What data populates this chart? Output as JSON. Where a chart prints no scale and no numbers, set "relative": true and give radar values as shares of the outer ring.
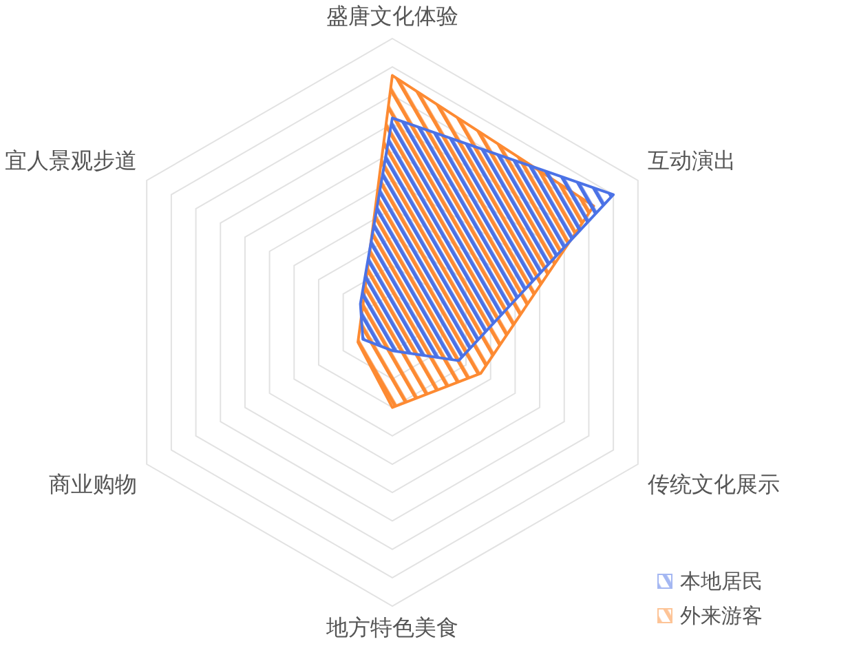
{
  "chart_data": {
    "type": "radar",
    "relative": true,
    "grid": true,
    "legend": "bottom right",
    "categories": [
      "盛唐文化体验",
      "互动演出",
      "传统文化展示",
      "地方特色美食",
      "商业购物",
      "宜人景观步道"
    ],
    "series": [
      {
        "name": "本地居民",
        "color": "#4b72e6",
        "values": [
          0.72,
          0.9,
          0.27,
          0.1,
          0.12,
          0.13
        ]
      },
      {
        "name": "外来游客",
        "color": "#fd8a32",
        "values": [
          0.87,
          0.82,
          0.36,
          0.3,
          0.14,
          0.12
        ]
      }
    ]
  }
}
